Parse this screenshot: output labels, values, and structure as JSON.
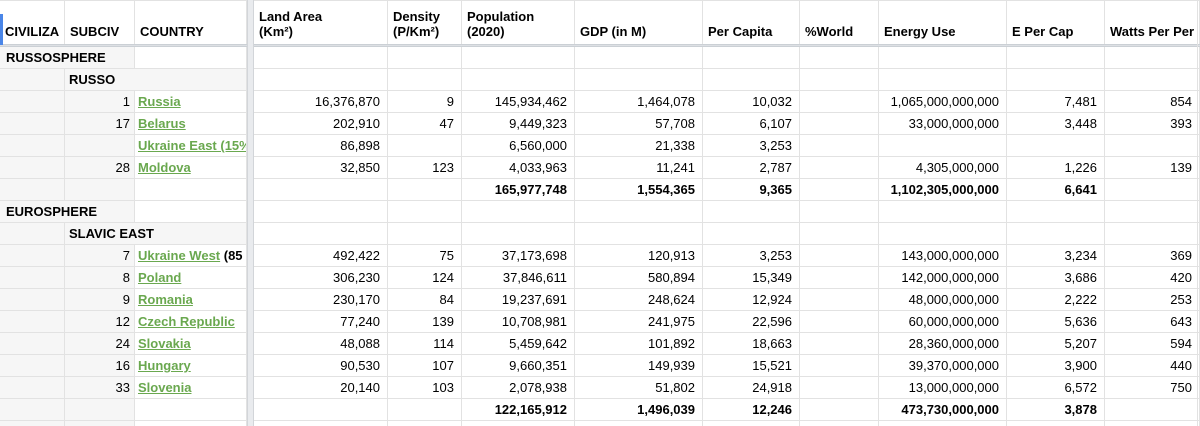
{
  "colors": {
    "link_green": "#6aa84f",
    "selection_blue": "#4a86e8",
    "gridline": "#e2e2e2"
  },
  "sheet": {
    "columns": [
      {
        "key": "civ",
        "label": "CIVILIZA"
      },
      {
        "key": "subciv",
        "label": "SUBCIV"
      },
      {
        "key": "country",
        "label": "COUNTRY"
      },
      {
        "key": "land",
        "label": "Land Area\n(Km²)"
      },
      {
        "key": "density",
        "label": "Density\n(P/Km²)"
      },
      {
        "key": "pop",
        "label": "Population\n(2020)"
      },
      {
        "key": "gdp",
        "label": "GDP (in M)"
      },
      {
        "key": "percap",
        "label": "Per Capita"
      },
      {
        "key": "world",
        "label": "%World"
      },
      {
        "key": "energy",
        "label": "Energy Use"
      },
      {
        "key": "epercap",
        "label": "E Per Cap"
      },
      {
        "key": "watts",
        "label": "Watts Per Per"
      }
    ],
    "rows": [
      {
        "kind": "group-civ",
        "label": "RUSSOSPHERE"
      },
      {
        "kind": "group-subciv",
        "label": "RUSSO"
      },
      {
        "kind": "country",
        "rank": "1",
        "name": "Russia",
        "suffix": "",
        "land": "16,376,870",
        "density": "9",
        "pop": "145,934,462",
        "gdp": "1,464,078",
        "percap": "10,032",
        "world": "",
        "energy": "1,065,000,000,000",
        "epercap": "7,481",
        "watts": "854"
      },
      {
        "kind": "country",
        "rank": "17",
        "name": "Belarus",
        "suffix": "",
        "land": "202,910",
        "density": "47",
        "pop": "9,449,323",
        "gdp": "57,708",
        "percap": "6,107",
        "world": "",
        "energy": "33,000,000,000",
        "epercap": "3,448",
        "watts": "393"
      },
      {
        "kind": "country",
        "rank": "",
        "name": "Ukraine East (15%",
        "suffix": "",
        "land": "86,898",
        "density": "",
        "pop": "6,560,000",
        "gdp": "21,338",
        "percap": "3,253",
        "world": "",
        "energy": "",
        "epercap": "",
        "watts": ""
      },
      {
        "kind": "country",
        "rank": "28",
        "name": "Moldova",
        "suffix": "",
        "land": "32,850",
        "density": "123",
        "pop": "4,033,963",
        "gdp": "11,241",
        "percap": "2,787",
        "world": "",
        "energy": "4,305,000,000",
        "epercap": "1,226",
        "watts": "139"
      },
      {
        "kind": "total",
        "land": "",
        "density": "",
        "pop": "165,977,748",
        "gdp": "1,554,365",
        "percap": "9,365",
        "world": "",
        "energy": "1,102,305,000,000",
        "epercap": "6,641",
        "watts": ""
      },
      {
        "kind": "group-civ",
        "label": "EUROSPHERE"
      },
      {
        "kind": "group-subciv",
        "label": "SLAVIC EAST"
      },
      {
        "kind": "country",
        "rank": "7",
        "name": "Ukraine West",
        "suffix": " (85",
        "land": "492,422",
        "density": "75",
        "pop": "37,173,698",
        "gdp": "120,913",
        "percap": "3,253",
        "world": "",
        "energy": "143,000,000,000",
        "epercap": "3,234",
        "watts": "369"
      },
      {
        "kind": "country",
        "rank": "8",
        "name": "Poland",
        "suffix": "",
        "land": "306,230",
        "density": "124",
        "pop": "37,846,611",
        "gdp": "580,894",
        "percap": "15,349",
        "world": "",
        "energy": "142,000,000,000",
        "epercap": "3,686",
        "watts": "420"
      },
      {
        "kind": "country",
        "rank": "9",
        "name": "Romania",
        "suffix": "",
        "land": "230,170",
        "density": "84",
        "pop": "19,237,691",
        "gdp": "248,624",
        "percap": "12,924",
        "world": "",
        "energy": "48,000,000,000",
        "epercap": "2,222",
        "watts": "253"
      },
      {
        "kind": "country",
        "rank": "12",
        "name": "Czech Republic",
        "suffix": "",
        "land": "77,240",
        "density": "139",
        "pop": "10,708,981",
        "gdp": "241,975",
        "percap": "22,596",
        "world": "",
        "energy": "60,000,000,000",
        "epercap": "5,636",
        "watts": "643"
      },
      {
        "kind": "country",
        "rank": "24",
        "name": "Slovakia",
        "suffix": "",
        "land": "48,088",
        "density": "114",
        "pop": "5,459,642",
        "gdp": "101,892",
        "percap": "18,663",
        "world": "",
        "energy": "28,360,000,000",
        "epercap": "5,207",
        "watts": "594"
      },
      {
        "kind": "country",
        "rank": "16",
        "name": "Hungary",
        "suffix": "",
        "land": "90,530",
        "density": "107",
        "pop": "9,660,351",
        "gdp": "149,939",
        "percap": "15,521",
        "world": "",
        "energy": "39,370,000,000",
        "epercap": "3,900",
        "watts": "440"
      },
      {
        "kind": "country",
        "rank": "33",
        "name": "Slovenia",
        "suffix": "",
        "land": "20,140",
        "density": "103",
        "pop": "2,078,938",
        "gdp": "51,802",
        "percap": "24,918",
        "world": "",
        "energy": "13,000,000,000",
        "epercap": "6,572",
        "watts": "750"
      },
      {
        "kind": "total",
        "land": "",
        "density": "",
        "pop": "122,165,912",
        "gdp": "1,496,039",
        "percap": "12,246",
        "world": "",
        "energy": "473,730,000,000",
        "epercap": "3,878",
        "watts": ""
      },
      {
        "kind": "blank"
      }
    ]
  }
}
